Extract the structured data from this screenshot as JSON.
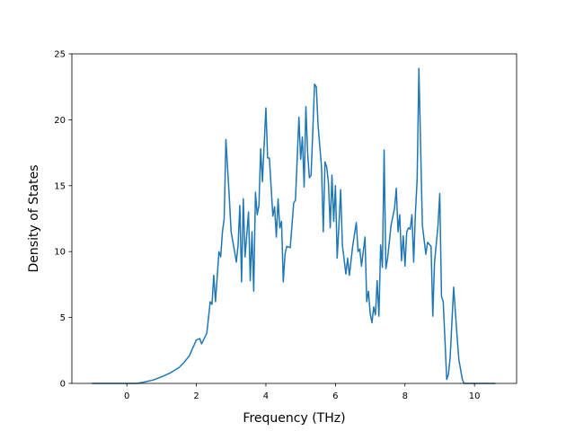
{
  "chart_data": {
    "type": "line",
    "xlabel": "Frequency (THz)",
    "ylabel": "Density of States",
    "color": "#1f77b4",
    "xlim": [
      -1.58,
      11.21
    ],
    "ylim": [
      0,
      25
    ],
    "xticks": [
      0,
      2,
      4,
      6,
      8,
      10
    ],
    "yticks": [
      0,
      5,
      10,
      15,
      20,
      25
    ],
    "x": [
      -1.0,
      0.0,
      0.3,
      0.5,
      0.75,
      1.0,
      1.25,
      1.5,
      1.65,
      1.8,
      1.9,
      2.0,
      2.1,
      2.15,
      2.3,
      2.4,
      2.45,
      2.5,
      2.55,
      2.65,
      2.7,
      2.75,
      2.8,
      2.85,
      2.95,
      3.0,
      3.1,
      3.15,
      3.2,
      3.25,
      3.3,
      3.35,
      3.4,
      3.5,
      3.55,
      3.6,
      3.65,
      3.7,
      3.75,
      3.8,
      3.85,
      3.9,
      4.0,
      4.05,
      4.1,
      4.2,
      4.25,
      4.3,
      4.35,
      4.4,
      4.45,
      4.5,
      4.55,
      4.6,
      4.7,
      4.8,
      4.85,
      4.95,
      5.0,
      5.05,
      5.1,
      5.15,
      5.2,
      5.25,
      5.3,
      5.4,
      5.45,
      5.5,
      5.6,
      5.65,
      5.7,
      5.75,
      5.8,
      5.85,
      5.9,
      5.95,
      6.0,
      6.05,
      6.1,
      6.15,
      6.2,
      6.3,
      6.35,
      6.4,
      6.5,
      6.6,
      6.65,
      6.7,
      6.75,
      6.85,
      6.9,
      6.95,
      7.0,
      7.05,
      7.1,
      7.15,
      7.2,
      7.25,
      7.3,
      7.35,
      7.4,
      7.45,
      7.5,
      7.6,
      7.7,
      7.75,
      7.8,
      7.85,
      7.9,
      7.95,
      8.0,
      8.05,
      8.1,
      8.15,
      8.2,
      8.25,
      8.3,
      8.35,
      8.4,
      8.45,
      8.5,
      8.6,
      8.65,
      8.75,
      8.8,
      8.85,
      8.95,
      9.0,
      9.05,
      9.1,
      9.2,
      9.25,
      9.3,
      9.4,
      9.5,
      9.55,
      9.65,
      9.7,
      10.6
    ],
    "values": [
      0,
      0,
      0,
      0.1,
      0.25,
      0.5,
      0.8,
      1.2,
      1.6,
      2.1,
      2.7,
      3.3,
      3.4,
      3.0,
      3.8,
      6.2,
      6.0,
      8.2,
      6.2,
      10.0,
      9.6,
      11.5,
      12.5,
      18.5,
      14.0,
      11.5,
      10.0,
      9.2,
      10.5,
      13.5,
      7.7,
      14.0,
      9.6,
      13.0,
      7.8,
      11.5,
      7.0,
      14.5,
      12.8,
      13.5,
      17.8,
      15.3,
      20.9,
      17.1,
      17.1,
      12.7,
      13.4,
      11.1,
      14.0,
      11.8,
      12.3,
      7.7,
      9.8,
      10.4,
      10.3,
      13.7,
      13.9,
      20.2,
      17.0,
      18.7,
      14.9,
      21.0,
      17.5,
      15.6,
      15.8,
      22.7,
      22.5,
      19.6,
      16.4,
      11.5,
      16.8,
      16.4,
      15.2,
      11.8,
      15.8,
      12.3,
      15.0,
      9.5,
      12.0,
      14.7,
      10.5,
      8.3,
      9.5,
      8.2,
      10.5,
      12.2,
      10.0,
      10.2,
      8.9,
      11.1,
      6.2,
      7.0,
      5.3,
      4.6,
      5.8,
      5.2,
      7.8,
      5.1,
      10.5,
      8.8,
      17.7,
      8.7,
      9.5,
      12.0,
      13.3,
      14.8,
      11.5,
      12.8,
      9.3,
      11.2,
      8.9,
      11.5,
      11.8,
      11.7,
      12.8,
      9.2,
      12.9,
      15.5,
      23.9,
      18.0,
      12.0,
      9.8,
      10.7,
      10.4,
      5.1,
      9.2,
      12.0,
      14.4,
      6.6,
      6.2,
      0.3,
      0.7,
      2.0,
      7.3,
      3.5,
      1.8,
      0.3,
      0,
      0
    ]
  }
}
